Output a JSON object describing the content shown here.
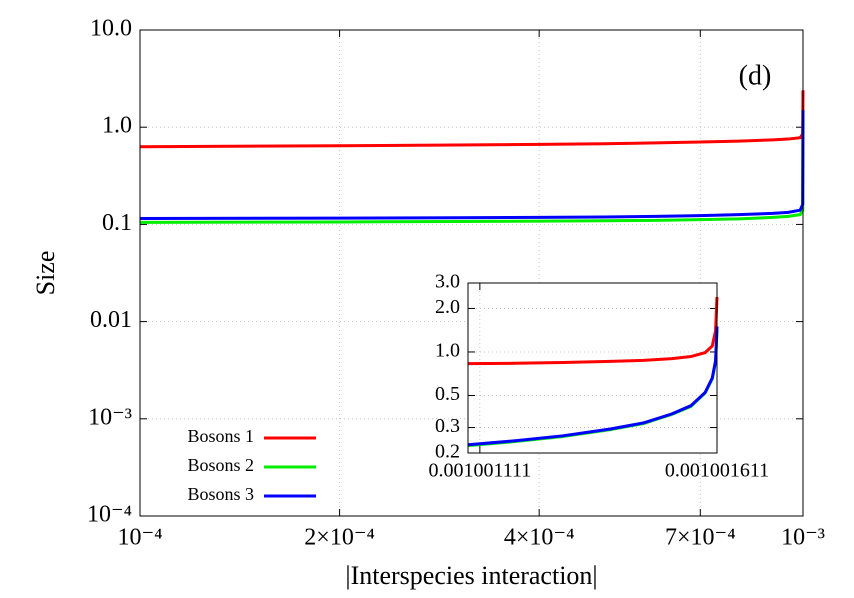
{
  "chart_data": [
    {
      "type": "line",
      "xlabel": "|Interspecies interaction|",
      "ylabel": "Size",
      "annotation": "(d)",
      "xscale": "log",
      "yscale": "log",
      "grid": true,
      "legend": "lower left",
      "xlim": [
        0.0001,
        0.001
      ],
      "ylim": [
        0.0001,
        10
      ],
      "xticks": [
        {
          "value": 0.0001,
          "label": "10⁻⁴"
        },
        {
          "value": 0.0002,
          "label": "2×10⁻⁴"
        },
        {
          "value": 0.0004,
          "label": "4×10⁻⁴"
        },
        {
          "value": 0.0007,
          "label": "7×10⁻⁴"
        },
        {
          "value": 0.001,
          "label": "10⁻³"
        }
      ],
      "yticks": [
        {
          "value": 0.0001,
          "label": "10⁻⁴"
        },
        {
          "value": 0.001,
          "label": "10⁻³"
        },
        0.01,
        0.1,
        {
          "value": 1,
          "label": "1.0"
        },
        {
          "value": 10,
          "label": "10.0"
        }
      ],
      "x": [
        0.0001,
        0.0002,
        0.0003,
        0.0004,
        0.0005,
        0.0006,
        0.0007,
        0.0008,
        0.0009,
        0.00095,
        0.00099,
        0.000999,
        0.001
      ],
      "series": [
        {
          "name": "Bosons 1",
          "color": "#ff0000",
          "values": [
            0.63,
            0.645,
            0.655,
            0.665,
            0.675,
            0.69,
            0.705,
            0.72,
            0.74,
            0.755,
            0.78,
            0.85,
            2.4
          ]
        },
        {
          "name": "Bosons 2",
          "color": "#00ee00",
          "values": [
            0.105,
            0.106,
            0.107,
            0.108,
            0.109,
            0.11,
            0.112,
            0.114,
            0.118,
            0.121,
            0.126,
            0.14,
            1.4
          ]
        },
        {
          "name": "Bosons 3",
          "color": "#0000ff",
          "values": [
            0.115,
            0.116,
            0.117,
            0.118,
            0.119,
            0.121,
            0.123,
            0.126,
            0.13,
            0.133,
            0.14,
            0.16,
            1.5
          ]
        }
      ]
    },
    {
      "type": "line",
      "yscale": "log",
      "grid": true,
      "xlim": [
        0.001001086,
        0.001001611
      ],
      "ylim": [
        0.2,
        3
      ],
      "xticks": [
        0.001001111,
        0.001001611
      ],
      "yticks": [
        0.2,
        0.3,
        0.5,
        {
          "value": 1,
          "label": "1.0"
        },
        {
          "value": 2,
          "label": "2.0"
        },
        {
          "value": 3,
          "label": "3.0"
        }
      ],
      "x": [
        0.001001086,
        0.001001186,
        0.001001286,
        0.001001386,
        0.001001456,
        0.001001516,
        0.001001556,
        0.001001586,
        0.001001601,
        0.001001608,
        0.001001611
      ],
      "series": [
        {
          "color": "#ff0000",
          "values": [
            0.83,
            0.835,
            0.845,
            0.86,
            0.875,
            0.9,
            0.93,
            0.99,
            1.1,
            1.4,
            2.4
          ]
        },
        {
          "color": "#00ee00",
          "values": [
            0.225,
            0.24,
            0.26,
            0.29,
            0.32,
            0.37,
            0.42,
            0.52,
            0.65,
            0.85,
            1.4
          ]
        },
        {
          "color": "#0000ff",
          "values": [
            0.228,
            0.243,
            0.263,
            0.293,
            0.323,
            0.373,
            0.425,
            0.525,
            0.66,
            0.87,
            1.5
          ]
        }
      ]
    }
  ]
}
